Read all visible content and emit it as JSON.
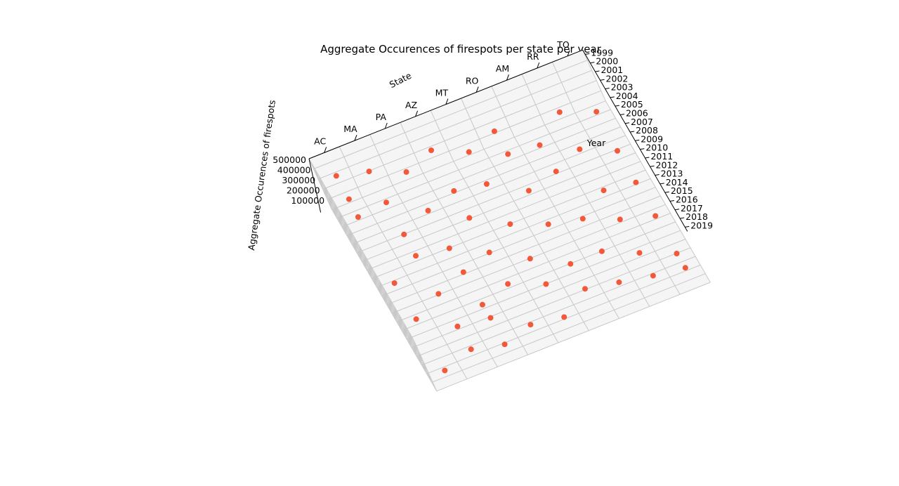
{
  "chart_data": {
    "type": "scatter",
    "projection": "3d",
    "title": "Aggregate Occurences of firespots per state per year",
    "xlabel": "State",
    "ylabel": "Year",
    "zlabel": "Aggregate Occurences of firespots",
    "states": [
      "AC",
      "MA",
      "PA",
      "AZ",
      "MT",
      "RO",
      "AM",
      "RR",
      "TO"
    ],
    "years": [
      "1999",
      "2000",
      "2001",
      "2002",
      "2003",
      "2004",
      "2005",
      "2006",
      "2007",
      "2008",
      "2009",
      "2010",
      "2011",
      "2012",
      "2013",
      "2014",
      "2015",
      "2016",
      "2017",
      "2018",
      "2019"
    ],
    "zticks": [
      "100000",
      "200000",
      "300000",
      "400000",
      "500000"
    ],
    "zlim": [
      0,
      500000
    ],
    "grid": true,
    "marker_color": "#f4583a",
    "points": [
      {
        "state": "AC",
        "year": "2019",
        "value": 100000
      },
      {
        "state": "AC",
        "year": "2014",
        "value": 180000
      },
      {
        "state": "AC",
        "year": "2009",
        "value": 110000
      },
      {
        "state": "AC",
        "year": "2003",
        "value": 250000
      },
      {
        "state": "AC",
        "year": "2002",
        "value": 340000
      },
      {
        "state": "AC",
        "year": "2000",
        "value": 400000
      },
      {
        "state": "MA",
        "year": "2019",
        "value": 190000
      },
      {
        "state": "MA",
        "year": "2016",
        "value": 160000
      },
      {
        "state": "MA",
        "year": "2012",
        "value": 140000
      },
      {
        "state": "MA",
        "year": "2007",
        "value": 90000
      },
      {
        "state": "MA",
        "year": "2005",
        "value": 130000
      },
      {
        "state": "MA",
        "year": "2002",
        "value": 190000
      },
      {
        "state": "MA",
        "year": "1999",
        "value": 240000
      },
      {
        "state": "PA",
        "year": "2019",
        "value": 120000
      },
      {
        "state": "PA",
        "year": "2017",
        "value": 210000
      },
      {
        "state": "PA",
        "year": "2015",
        "value": 170000
      },
      {
        "state": "PA",
        "year": "2011",
        "value": 150000
      },
      {
        "state": "PA",
        "year": "2008",
        "value": 130000
      },
      {
        "state": "PA",
        "year": "2004",
        "value": 160000
      },
      {
        "state": "PA",
        "year": "2000",
        "value": 200000
      },
      {
        "state": "AZ",
        "year": "2018",
        "value": 110000
      },
      {
        "state": "AZ",
        "year": "2014",
        "value": 170000
      },
      {
        "state": "AZ",
        "year": "2010",
        "value": 140000
      },
      {
        "state": "AZ",
        "year": "2006",
        "value": 140000
      },
      {
        "state": "AZ",
        "year": "2003",
        "value": 150000
      },
      {
        "state": "AZ",
        "year": "1999",
        "value": 210000
      },
      {
        "state": "MT",
        "year": "2019",
        "value": 150000
      },
      {
        "state": "MT",
        "year": "2016",
        "value": 220000
      },
      {
        "state": "MT",
        "year": "2012",
        "value": 130000
      },
      {
        "state": "MT",
        "year": "2008",
        "value": 130000
      },
      {
        "state": "MT",
        "year": "2003",
        "value": 100000
      },
      {
        "state": "MT",
        "year": "2000",
        "value": 160000
      },
      {
        "state": "RO",
        "year": "2017",
        "value": 140000
      },
      {
        "state": "RO",
        "year": "2014",
        "value": 130000
      },
      {
        "state": "RO",
        "year": "2010",
        "value": 180000
      },
      {
        "state": "RO",
        "year": "2006",
        "value": 170000
      },
      {
        "state": "RO",
        "year": "2002",
        "value": 190000
      },
      {
        "state": "RO",
        "year": "1999",
        "value": 160000
      },
      {
        "state": "AM",
        "year": "2018",
        "value": 170000
      },
      {
        "state": "AM",
        "year": "2015",
        "value": 220000
      },
      {
        "state": "AM",
        "year": "2011",
        "value": 200000
      },
      {
        "state": "AM",
        "year": "2006",
        "value": 240000
      },
      {
        "state": "AM",
        "year": "2002",
        "value": 160000
      },
      {
        "state": "RR",
        "year": "2019",
        "value": 200000
      },
      {
        "state": "RR",
        "year": "2016",
        "value": 170000
      },
      {
        "state": "RR",
        "year": "2012",
        "value": 160000
      },
      {
        "state": "RR",
        "year": "2009",
        "value": 190000
      },
      {
        "state": "RR",
        "year": "2004",
        "value": 170000
      },
      {
        "state": "RR",
        "year": "2001",
        "value": 280000
      },
      {
        "state": "TO",
        "year": "2019",
        "value": 160000
      },
      {
        "state": "TO",
        "year": "2017",
        "value": 130000
      },
      {
        "state": "TO",
        "year": "2013",
        "value": 160000
      },
      {
        "state": "TO",
        "year": "2009",
        "value": 150000
      },
      {
        "state": "TO",
        "year": "2005",
        "value": 120000
      },
      {
        "state": "TO",
        "year": "2002",
        "value": 250000
      }
    ]
  }
}
